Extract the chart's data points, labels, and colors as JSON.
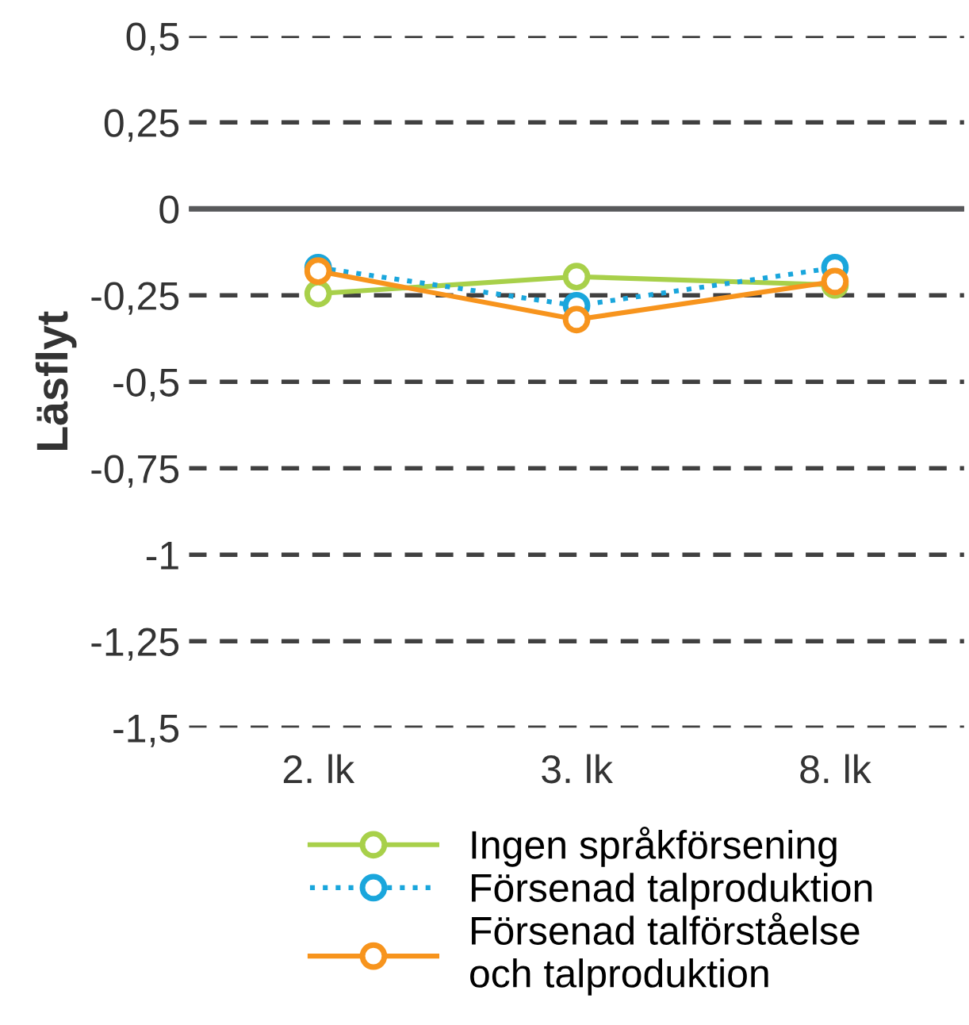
{
  "chart_data": {
    "type": "line",
    "ylabel": "Läsflyt",
    "categories": [
      "2. lk",
      "3. lk",
      "8. lk"
    ],
    "series": [
      {
        "name": "Ingen språkförsening",
        "color": "#a8d04a",
        "values": [
          -0.245,
          -0.196,
          -0.22
        ],
        "line_style": "solid"
      },
      {
        "name": "Försenad talproduktion",
        "color": "#1aa6dc",
        "values": [
          -0.17,
          -0.28,
          -0.17
        ],
        "line_style": "dotted"
      },
      {
        "name": "Försenad talförståelse\noch talproduktion",
        "color": "#f7941d",
        "values": [
          -0.18,
          -0.32,
          -0.21
        ],
        "line_style": "solid"
      }
    ],
    "ylim": [
      -1.5,
      0.5
    ],
    "yticks": [
      {
        "value": 0.5,
        "label": "0,5"
      },
      {
        "value": 0.25,
        "label": "0,25"
      },
      0,
      {
        "value": -0.25,
        "label": "-0,25"
      },
      {
        "value": -0.5,
        "label": "-0,5"
      },
      {
        "value": -0.75,
        "label": "-0,75"
      },
      -1,
      {
        "value": -1.25,
        "label": "-1,25"
      },
      {
        "value": -1.5,
        "label": "-1,5"
      }
    ],
    "ref_lines": [
      {
        "axis": "y",
        "value": 0,
        "color": "#58595b",
        "line_style": "solid"
      }
    ],
    "grid": "y",
    "legend": "bottom",
    "marker": "circle"
  }
}
